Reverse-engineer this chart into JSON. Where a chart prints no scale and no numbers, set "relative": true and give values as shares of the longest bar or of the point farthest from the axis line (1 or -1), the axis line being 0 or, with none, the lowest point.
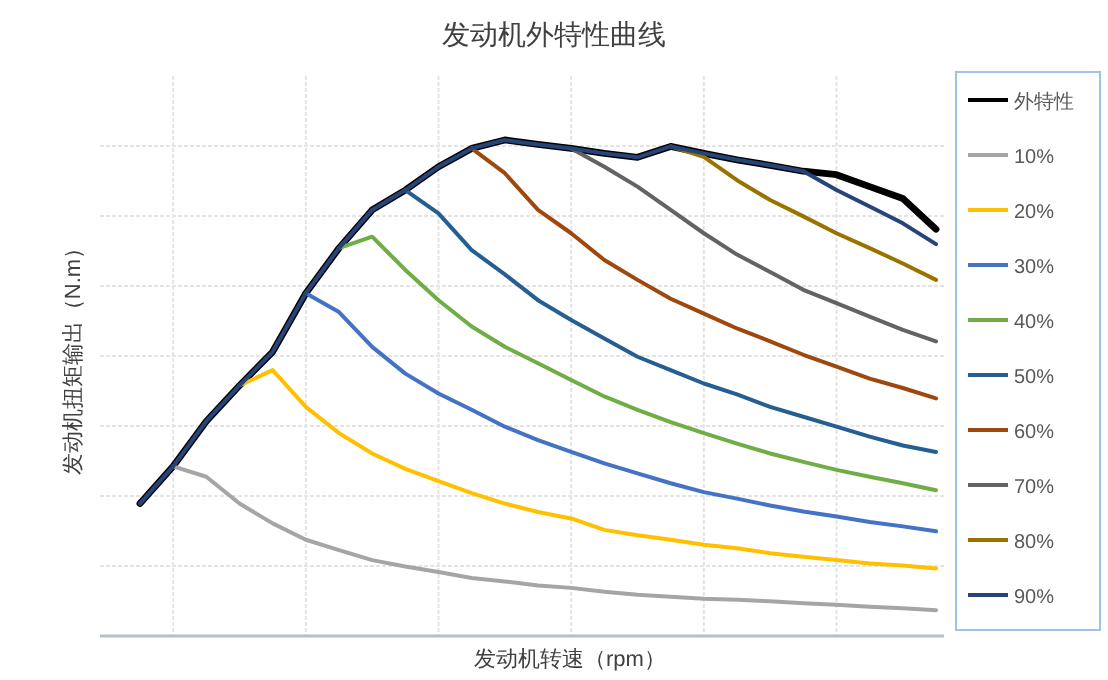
{
  "chart_data": {
    "type": "line",
    "title": "发动机外特性曲线",
    "xlabel": "发动机转速（rpm）",
    "ylabel": "发动机扭矩输出（N.m）",
    "relative": true,
    "grid": true,
    "legend": "right",
    "line_style": "solid",
    "categories": [
      null,
      null,
      null,
      null,
      null,
      null,
      null,
      null,
      null,
      null,
      null,
      null,
      null,
      null,
      null,
      null,
      null,
      null,
      null,
      null,
      null,
      null,
      null,
      null,
      null
    ],
    "series": [
      {
        "name": "外特性",
        "color": "#000000",
        "values": [
          0.267,
          0.342,
          0.433,
          0.505,
          0.573,
          0.691,
          0.782,
          0.859,
          0.899,
          0.946,
          0.983,
          1,
          0.991,
          0.983,
          0.973,
          0.965,
          0.987,
          0.973,
          0.96,
          0.949,
          0.937,
          0.93,
          0.906,
          0.882,
          0.82
        ]
      },
      {
        "name": "10%",
        "color": "#a5a5a5",
        "values": [
          null,
          0.342,
          0.321,
          0.267,
          0.227,
          0.194,
          0.173,
          0.153,
          0.14,
          0.129,
          0.117,
          0.11,
          0.102,
          0.097,
          0.089,
          0.083,
          0.079,
          0.075,
          0.073,
          0.07,
          0.066,
          0.063,
          0.059,
          0.056,
          0.052
        ]
      },
      {
        "name": "20%",
        "color": "#ffc000",
        "values": [
          null,
          null,
          null,
          0.505,
          0.536,
          0.462,
          0.409,
          0.368,
          0.337,
          0.312,
          0.288,
          0.267,
          0.25,
          0.237,
          0.214,
          0.203,
          0.194,
          0.184,
          0.177,
          0.167,
          0.16,
          0.153,
          0.146,
          0.142,
          0.136
        ]
      },
      {
        "name": "30%",
        "color": "#4472c4",
        "values": [
          null,
          null,
          null,
          null,
          null,
          0.691,
          0.653,
          0.583,
          0.529,
          0.489,
          0.456,
          0.422,
          0.395,
          0.371,
          0.348,
          0.328,
          0.308,
          0.29,
          0.277,
          0.263,
          0.251,
          0.241,
          0.23,
          0.221,
          0.211
        ]
      },
      {
        "name": "40%",
        "color": "#70ad47",
        "values": [
          null,
          null,
          null,
          null,
          null,
          null,
          0.782,
          0.805,
          0.738,
          0.677,
          0.624,
          0.583,
          0.55,
          0.516,
          0.483,
          0.456,
          0.431,
          0.409,
          0.388,
          0.368,
          0.351,
          0.335,
          0.321,
          0.308,
          0.294
        ]
      },
      {
        "name": "50%",
        "color": "#255e91",
        "values": [
          null,
          null,
          null,
          null,
          null,
          null,
          null,
          null,
          0.899,
          0.852,
          0.778,
          0.729,
          0.677,
          0.637,
          0.6,
          0.563,
          0.536,
          0.509,
          0.487,
          0.462,
          0.442,
          0.422,
          0.402,
          0.384,
          0.371
        ]
      },
      {
        "name": "60%",
        "color": "#9e480e",
        "values": [
          null,
          null,
          null,
          null,
          null,
          null,
          null,
          null,
          null,
          null,
          0.983,
          0.933,
          0.859,
          0.812,
          0.758,
          0.718,
          0.68,
          0.65,
          0.62,
          0.594,
          0.567,
          0.543,
          0.519,
          0.5,
          0.479
        ]
      },
      {
        "name": "70%",
        "color": "#636363",
        "values": [
          null,
          null,
          null,
          null,
          null,
          null,
          null,
          null,
          null,
          null,
          null,
          null,
          null,
          0.983,
          0.946,
          0.906,
          0.859,
          0.812,
          0.769,
          0.734,
          0.698,
          0.671,
          0.644,
          0.617,
          0.594
        ]
      },
      {
        "name": "80%",
        "color": "#997300",
        "values": [
          null,
          null,
          null,
          null,
          null,
          null,
          null,
          null,
          null,
          null,
          null,
          null,
          null,
          null,
          null,
          null,
          0.987,
          0.966,
          0.919,
          0.879,
          0.846,
          0.812,
          0.782,
          0.751,
          0.718
        ]
      },
      {
        "name": "90%",
        "color": "#264478",
        "values": [
          0.267,
          0.342,
          0.433,
          0.505,
          0.573,
          0.691,
          0.782,
          0.859,
          0.899,
          0.946,
          0.983,
          1,
          0.991,
          0.983,
          0.973,
          0.965,
          0.987,
          0.973,
          0.96,
          0.949,
          0.937,
          0.899,
          0.866,
          0.832,
          0.79
        ]
      }
    ]
  }
}
